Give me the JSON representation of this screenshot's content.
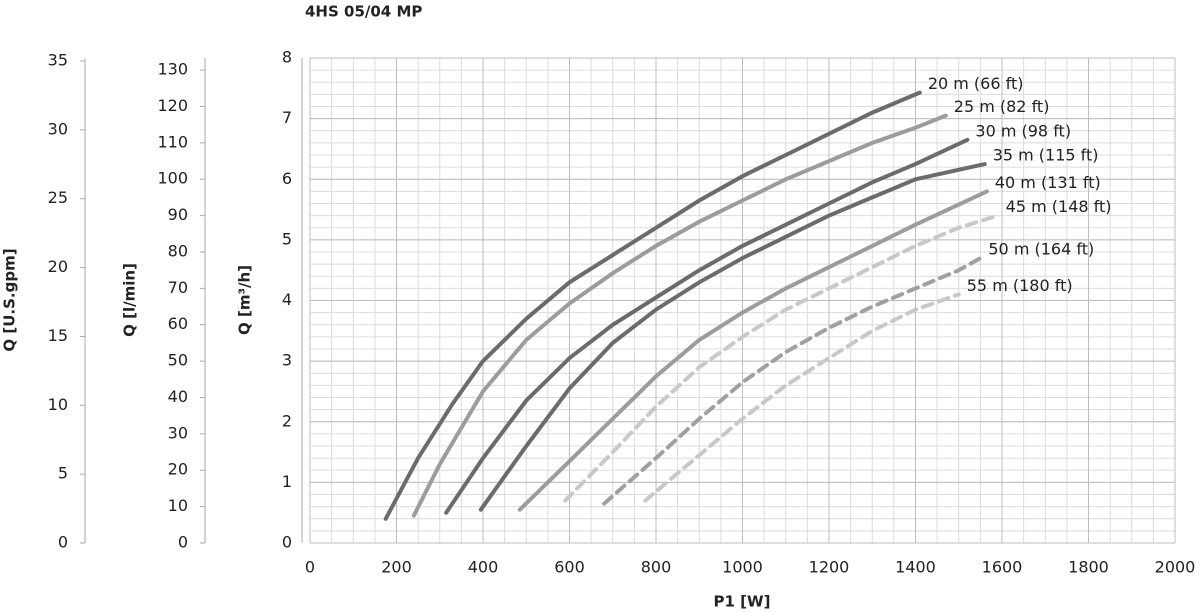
{
  "chart_data": {
    "type": "line",
    "title": "4HS 05/04 MP",
    "xlabel": "P1 [W]",
    "ylabel": "Q [m³/h]",
    "xlim": [
      0,
      2000
    ],
    "xticks": [
      0,
      200,
      400,
      600,
      800,
      1000,
      1200,
      1400,
      1600,
      1800,
      2000
    ],
    "ylim": [
      0,
      8
    ],
    "yticks": [
      0,
      1,
      2,
      3,
      4,
      5,
      6,
      7,
      8
    ],
    "grid": true,
    "secondary_axes": [
      {
        "label": "Q [l/min]",
        "ylim": [
          0,
          133.33
        ],
        "yticks": [
          0,
          10,
          20,
          30,
          40,
          50,
          60,
          70,
          80,
          90,
          100,
          110,
          120,
          130
        ]
      },
      {
        "label": "Q [U.S.gpm]",
        "ylim": [
          0,
          35.22
        ],
        "yticks": [
          0,
          5,
          10,
          15,
          20,
          25,
          30,
          35
        ]
      }
    ],
    "series": [
      {
        "name": "20 m (66 ft)",
        "color": "#6b6b6b",
        "dashed": false,
        "x": [
          175,
          250,
          330,
          400,
          500,
          600,
          700,
          800,
          900,
          1000,
          1100,
          1200,
          1300,
          1410
        ],
        "values": [
          0.4,
          1.4,
          2.3,
          3.0,
          3.7,
          4.3,
          4.75,
          5.2,
          5.65,
          6.05,
          6.4,
          6.75,
          7.1,
          7.43
        ]
      },
      {
        "name": "25 m (82 ft)",
        "color": "#9c9c9c",
        "dashed": false,
        "x": [
          240,
          300,
          400,
          500,
          600,
          700,
          800,
          900,
          1000,
          1100,
          1200,
          1300,
          1400,
          1470
        ],
        "values": [
          0.45,
          1.3,
          2.5,
          3.35,
          3.95,
          4.45,
          4.9,
          5.3,
          5.65,
          6.0,
          6.3,
          6.6,
          6.85,
          7.05
        ]
      },
      {
        "name": "30 m (98 ft)",
        "color": "#6b6b6b",
        "dashed": false,
        "x": [
          315,
          400,
          500,
          600,
          700,
          800,
          900,
          1000,
          1100,
          1200,
          1300,
          1400,
          1520
        ],
        "values": [
          0.5,
          1.4,
          2.35,
          3.05,
          3.6,
          4.05,
          4.5,
          4.9,
          5.25,
          5.6,
          5.95,
          6.25,
          6.65
        ]
      },
      {
        "name": "35 m (115 ft)",
        "color": "#6b6b6b",
        "dashed": false,
        "x": [
          395,
          500,
          600,
          700,
          800,
          900,
          1000,
          1100,
          1200,
          1300,
          1400,
          1560
        ],
        "values": [
          0.55,
          1.6,
          2.55,
          3.3,
          3.85,
          4.3,
          4.7,
          5.05,
          5.4,
          5.7,
          6.0,
          6.25
        ]
      },
      {
        "name": "40 m (131 ft)",
        "color": "#9c9c9c",
        "dashed": false,
        "x": [
          485,
          600,
          700,
          800,
          900,
          1000,
          1100,
          1200,
          1300,
          1400,
          1565
        ],
        "values": [
          0.55,
          1.35,
          2.05,
          2.75,
          3.35,
          3.8,
          4.2,
          4.55,
          4.9,
          5.25,
          5.8
        ]
      },
      {
        "name": "45 m (148 ft)",
        "color": "#c8c8c8",
        "dashed": true,
        "x": [
          590,
          700,
          800,
          900,
          1000,
          1100,
          1200,
          1300,
          1400,
          1500,
          1590
        ],
        "values": [
          0.7,
          1.5,
          2.25,
          2.9,
          3.4,
          3.85,
          4.2,
          4.55,
          4.9,
          5.2,
          5.4
        ]
      },
      {
        "name": "50 m (164 ft)",
        "color": "#a0a0a0",
        "dashed": true,
        "x": [
          680,
          800,
          900,
          1000,
          1100,
          1200,
          1300,
          1400,
          1500,
          1550
        ],
        "values": [
          0.65,
          1.4,
          2.05,
          2.65,
          3.15,
          3.55,
          3.9,
          4.2,
          4.5,
          4.7
        ]
      },
      {
        "name": "55 m (180 ft)",
        "color": "#c8c8c8",
        "dashed": true,
        "x": [
          775,
          900,
          1000,
          1100,
          1200,
          1300,
          1400,
          1500
        ],
        "values": [
          0.7,
          1.45,
          2.05,
          2.6,
          3.05,
          3.5,
          3.85,
          4.1
        ]
      }
    ]
  }
}
